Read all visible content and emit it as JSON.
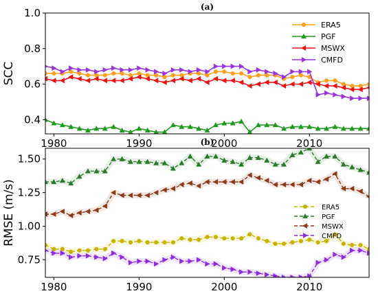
{
  "chart_data": [
    {
      "type": "line",
      "panel_label": "(a)",
      "ylabel": "SCC",
      "xlim": [
        1979,
        2017
      ],
      "ylim": [
        0.32,
        1.0
      ],
      "xticks": [
        1980,
        1990,
        2000,
        2010
      ],
      "yticks": [
        "0.4",
        "0.6",
        "0.8",
        "1.0"
      ],
      "ytick_values": [
        0.4,
        0.6,
        0.8,
        1.0
      ],
      "legend_position": "top-right",
      "x": [
        1979,
        1980,
        1981,
        1982,
        1983,
        1984,
        1985,
        1986,
        1987,
        1988,
        1989,
        1990,
        1991,
        1992,
        1993,
        1994,
        1995,
        1996,
        1997,
        1998,
        1999,
        2000,
        2001,
        2002,
        2003,
        2004,
        2005,
        2006,
        2007,
        2008,
        2009,
        2010,
        2011,
        2012,
        2013,
        2014,
        2015,
        2016,
        2017
      ],
      "series": [
        {
          "name": "ERA5",
          "color": "#ff9f1c",
          "marker": "circle",
          "dashed": false,
          "values": [
            0.66,
            0.66,
            0.66,
            0.67,
            0.66,
            0.65,
            0.65,
            0.65,
            0.66,
            0.66,
            0.65,
            0.66,
            0.65,
            0.65,
            0.64,
            0.65,
            0.65,
            0.66,
            0.66,
            0.65,
            0.67,
            0.67,
            0.66,
            0.66,
            0.64,
            0.65,
            0.65,
            0.65,
            0.63,
            0.64,
            0.65,
            0.64,
            0.61,
            0.62,
            0.62,
            0.6,
            0.59,
            0.59,
            0.6
          ]
        },
        {
          "name": "PGF",
          "color": "#1e9a1e",
          "marker": "triangle-up",
          "dashed": false,
          "values": [
            0.4,
            0.38,
            0.37,
            0.36,
            0.35,
            0.34,
            0.35,
            0.35,
            0.36,
            0.34,
            0.33,
            0.35,
            0.34,
            0.33,
            0.33,
            0.37,
            0.36,
            0.36,
            0.35,
            0.34,
            0.37,
            0.38,
            0.38,
            0.39,
            0.33,
            0.37,
            0.37,
            0.37,
            0.35,
            0.36,
            0.36,
            0.36,
            0.35,
            0.35,
            0.36,
            0.35,
            0.35,
            0.35,
            0.35
          ]
        },
        {
          "name": "MSWX",
          "color": "#ee1111",
          "marker": "triangle-left",
          "dashed": false,
          "values": [
            0.63,
            0.62,
            0.62,
            0.64,
            0.63,
            0.62,
            0.63,
            0.62,
            0.62,
            0.62,
            0.63,
            0.64,
            0.63,
            0.62,
            0.61,
            0.62,
            0.63,
            0.62,
            0.63,
            0.61,
            0.63,
            0.62,
            0.62,
            0.61,
            0.59,
            0.6,
            0.61,
            0.61,
            0.59,
            0.6,
            0.6,
            0.61,
            0.6,
            0.59,
            0.59,
            0.58,
            0.57,
            0.57,
            0.58
          ]
        },
        {
          "name": "CMFD",
          "color": "#9933dd",
          "marker": "triangle-right",
          "dashed": false,
          "values": [
            0.7,
            0.69,
            0.67,
            0.69,
            0.68,
            0.68,
            0.67,
            0.68,
            0.69,
            0.68,
            0.68,
            0.69,
            0.68,
            0.67,
            0.66,
            0.68,
            0.68,
            0.67,
            0.68,
            0.67,
            0.7,
            0.7,
            0.7,
            0.7,
            0.67,
            0.68,
            0.67,
            0.66,
            0.64,
            0.67,
            0.67,
            0.67,
            0.54,
            0.55,
            0.54,
            0.53,
            0.52,
            0.52,
            0.52
          ]
        }
      ]
    },
    {
      "type": "line",
      "panel_label": "(b)",
      "ylabel": "RMSE (m/s)",
      "xlim": [
        1979,
        2017
      ],
      "ylim": [
        0.62,
        1.58
      ],
      "xticks": [
        1980,
        1990,
        2000,
        2010
      ],
      "yticks": [
        "0.75",
        "1.00",
        "1.25",
        "1.50"
      ],
      "ytick_values": [
        0.75,
        1.0,
        1.25,
        1.5
      ],
      "legend_position": "right",
      "x": [
        1979,
        1980,
        1981,
        1982,
        1983,
        1984,
        1985,
        1986,
        1987,
        1988,
        1989,
        1990,
        1991,
        1992,
        1993,
        1994,
        1995,
        1996,
        1997,
        1998,
        1999,
        2000,
        2001,
        2002,
        2003,
        2004,
        2005,
        2006,
        2007,
        2008,
        2009,
        2010,
        2011,
        2012,
        2013,
        2014,
        2015,
        2016,
        2017
      ],
      "series": [
        {
          "name": "ERA5",
          "color": "#c8b400",
          "marker": "circle",
          "dashed": true,
          "values": [
            0.86,
            0.83,
            0.83,
            0.81,
            0.82,
            0.82,
            0.83,
            0.83,
            0.89,
            0.89,
            0.88,
            0.89,
            0.88,
            0.88,
            0.88,
            0.88,
            0.91,
            0.9,
            0.9,
            0.92,
            0.92,
            0.91,
            0.91,
            0.91,
            0.94,
            0.91,
            0.89,
            0.87,
            0.87,
            0.88,
            0.89,
            0.9,
            0.88,
            0.89,
            0.94,
            0.87,
            0.86,
            0.86,
            0.83
          ]
        },
        {
          "name": "PGF",
          "color": "#2a7a2a",
          "marker": "triangle-up",
          "dashed": true,
          "values": [
            1.33,
            1.33,
            1.34,
            1.32,
            1.37,
            1.41,
            1.41,
            1.41,
            1.5,
            1.5,
            1.48,
            1.48,
            1.48,
            1.47,
            1.47,
            1.43,
            1.47,
            1.52,
            1.46,
            1.52,
            1.52,
            1.49,
            1.48,
            1.46,
            1.51,
            1.51,
            1.49,
            1.46,
            1.46,
            1.53,
            1.55,
            1.58,
            1.48,
            1.52,
            1.52,
            1.46,
            1.44,
            1.42,
            1.4
          ]
        },
        {
          "name": "MSWX",
          "color": "#8b3a1a",
          "marker": "triangle-left",
          "dashed": true,
          "values": [
            1.09,
            1.09,
            1.11,
            1.08,
            1.1,
            1.11,
            1.12,
            1.15,
            1.25,
            1.23,
            1.23,
            1.23,
            1.23,
            1.25,
            1.27,
            1.28,
            1.31,
            1.32,
            1.3,
            1.33,
            1.33,
            1.33,
            1.33,
            1.33,
            1.38,
            1.36,
            1.34,
            1.31,
            1.31,
            1.31,
            1.31,
            1.34,
            1.33,
            1.35,
            1.39,
            1.28,
            1.28,
            1.26,
            1.22
          ]
        },
        {
          "name": "CMFD",
          "color": "#8b2be2",
          "marker": "triangle-right",
          "dashed": true,
          "values": [
            0.82,
            0.8,
            0.8,
            0.77,
            0.78,
            0.78,
            0.77,
            0.76,
            0.8,
            0.77,
            0.73,
            0.74,
            0.74,
            0.72,
            0.75,
            0.77,
            0.74,
            0.74,
            0.75,
            0.72,
            0.72,
            0.69,
            0.68,
            0.66,
            0.66,
            0.65,
            0.64,
            0.63,
            0.62,
            0.62,
            0.62,
            0.63,
            0.73,
            0.75,
            0.79,
            0.77,
            0.82,
            0.82,
            0.8
          ]
        }
      ]
    }
  ]
}
